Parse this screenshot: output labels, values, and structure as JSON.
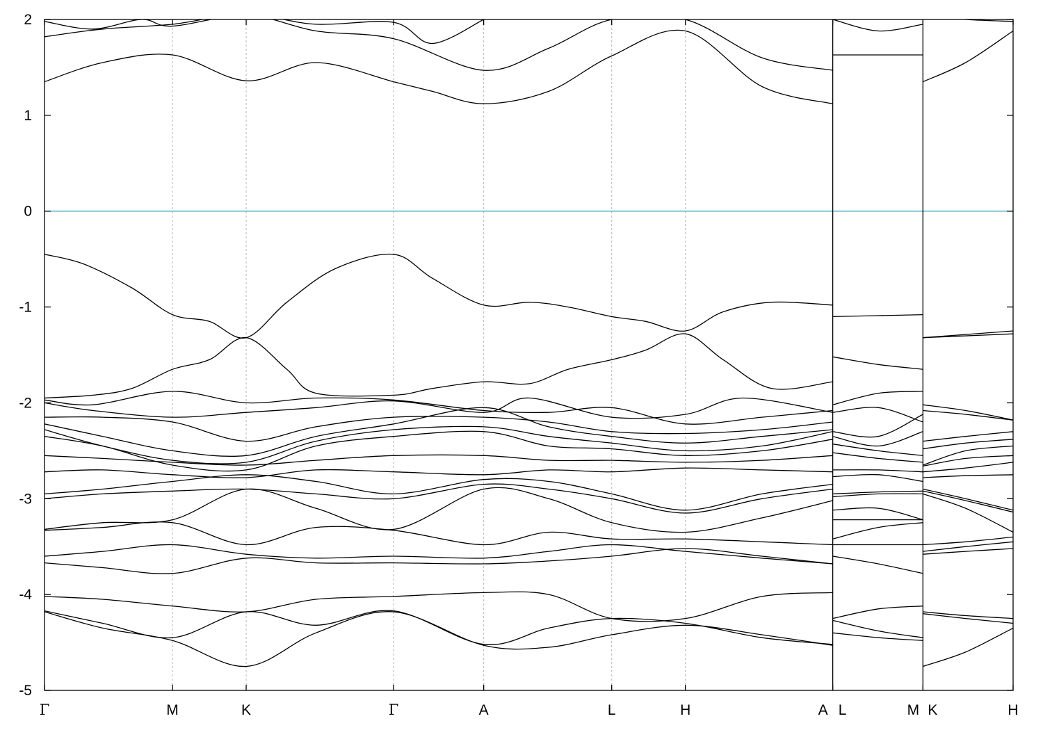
{
  "chart_data": {
    "type": "line",
    "title": "",
    "xlabel": "",
    "ylabel": "",
    "ylim": [
      -5,
      2
    ],
    "yticks": [
      -5,
      -4,
      -3,
      -2,
      -1,
      0,
      1,
      2
    ],
    "grid": "vertical dashed lines at high-symmetry points",
    "legend": "none",
    "reference_line": {
      "y": 0,
      "color": "#5fb4c8"
    },
    "kpoints": [
      {
        "label": "Γ",
        "x": 0.0
      },
      {
        "label": "M",
        "x": 1.32
      },
      {
        "label": "K",
        "x": 2.08
      },
      {
        "label": "Γ",
        "x": 3.6
      },
      {
        "label": "A",
        "x": 4.53
      },
      {
        "label": "L",
        "x": 5.85
      },
      {
        "label": "H",
        "x": 6.61
      },
      {
        "label": "A",
        "x": 8.13
      },
      {
        "label": "L",
        "x": 8.13
      },
      {
        "label": "M",
        "x": 9.06
      },
      {
        "label": "K",
        "x": 9.06
      },
      {
        "label": "H",
        "x": 9.99
      }
    ],
    "xlim": [
      0.0,
      9.99
    ],
    "segments": [
      {
        "path": "Γ-M-K-Γ-A-L-H-A",
        "x_start": 0.0,
        "x_end": 8.13
      },
      {
        "path": "L-M",
        "x_start": 8.13,
        "x_end": 9.06
      },
      {
        "path": "K-H",
        "x_start": 9.06,
        "x_end": 9.99
      }
    ],
    "series": [
      {
        "x": [
          0,
          0.4,
          0.9,
          1.32,
          1.7,
          2.08,
          2.5,
          3.0,
          3.6,
          4.0,
          4.53,
          5.0,
          5.4,
          5.85,
          6.2,
          6.61,
          7.0,
          7.5,
          8.13
        ],
        "y": [
          -0.45,
          -0.55,
          -0.8,
          -1.08,
          -1.15,
          -1.32,
          -0.95,
          -0.6,
          -0.45,
          -0.7,
          -0.98,
          -0.95,
          -1.0,
          -1.1,
          -1.15,
          -1.25,
          -1.05,
          -0.95,
          -0.98
        ]
      },
      {
        "x": [
          0,
          0.5,
          0.9,
          1.32,
          1.7,
          2.08,
          2.5,
          2.8,
          3.6,
          4.0,
          4.53,
          5.0,
          5.4,
          5.85,
          6.2,
          6.61,
          7.0,
          7.5,
          8.13
        ],
        "y": [
          -1.95,
          -1.92,
          -1.85,
          -1.65,
          -1.55,
          -1.32,
          -1.65,
          -1.9,
          -1.92,
          -1.85,
          -1.78,
          -1.8,
          -1.65,
          -1.55,
          -1.45,
          -1.28,
          -1.55,
          -1.85,
          -1.78
        ]
      },
      {
        "x": [
          0,
          0.5,
          1.32,
          2.08,
          2.8,
          3.6,
          4.53,
          5.2,
          5.85,
          6.61,
          7.4,
          8.13
        ],
        "y": [
          -1.97,
          -2.02,
          -1.88,
          -2.0,
          -1.95,
          -1.97,
          -2.08,
          -2.1,
          -2.05,
          -2.22,
          -2.15,
          -2.08
        ]
      },
      {
        "x": [
          0,
          0.5,
          1.32,
          2.08,
          2.8,
          3.6,
          4.53,
          5.0,
          5.85,
          6.61,
          7.2,
          8.13
        ],
        "y": [
          -2.0,
          -2.08,
          -2.15,
          -2.1,
          -2.05,
          -1.98,
          -2.1,
          -1.95,
          -2.15,
          -2.12,
          -1.95,
          -2.1
        ]
      },
      {
        "x": [
          0,
          0.6,
          1.32,
          2.08,
          2.8,
          3.6,
          4.53,
          5.2,
          5.85,
          6.61,
          7.4,
          8.13
        ],
        "y": [
          -2.15,
          -2.15,
          -2.2,
          -2.4,
          -2.25,
          -2.15,
          -2.15,
          -2.2,
          -2.3,
          -2.32,
          -2.28,
          -2.2
        ]
      },
      {
        "x": [
          0,
          0.6,
          1.32,
          2.08,
          2.8,
          3.6,
          4.53,
          5.2,
          5.85,
          6.61,
          7.4,
          8.13
        ],
        "y": [
          -2.22,
          -2.35,
          -2.5,
          -2.55,
          -2.35,
          -2.22,
          -2.05,
          -2.25,
          -2.35,
          -2.42,
          -2.35,
          -2.28
        ]
      },
      {
        "x": [
          0,
          0.6,
          1.32,
          2.08,
          2.8,
          3.6,
          4.53,
          5.2,
          5.85,
          6.61,
          7.4,
          8.13
        ],
        "y": [
          -2.28,
          -2.45,
          -2.6,
          -2.62,
          -2.4,
          -2.28,
          -2.25,
          -2.35,
          -2.42,
          -2.5,
          -2.45,
          -2.3
        ]
      },
      {
        "x": [
          0,
          0.6,
          1.32,
          2.08,
          2.8,
          3.6,
          4.53,
          5.2,
          5.85,
          6.61,
          7.4,
          8.13
        ],
        "y": [
          -2.35,
          -2.45,
          -2.65,
          -2.7,
          -2.45,
          -2.35,
          -2.3,
          -2.45,
          -2.48,
          -2.55,
          -2.5,
          -2.38
        ]
      },
      {
        "x": [
          0,
          0.6,
          1.32,
          2.08,
          2.8,
          3.6,
          4.53,
          5.2,
          5.85,
          6.61,
          7.4,
          8.13
        ],
        "y": [
          -2.55,
          -2.58,
          -2.62,
          -2.65,
          -2.6,
          -2.55,
          -2.55,
          -2.6,
          -2.6,
          -2.62,
          -2.6,
          -2.55
        ]
      },
      {
        "x": [
          0,
          0.6,
          1.32,
          2.08,
          2.8,
          3.6,
          4.53,
          5.2,
          5.85,
          6.61,
          7.4,
          8.13
        ],
        "y": [
          -2.72,
          -2.7,
          -2.75,
          -2.78,
          -2.7,
          -2.72,
          -2.75,
          -2.7,
          -2.72,
          -2.68,
          -2.7,
          -2.72
        ]
      },
      {
        "x": [
          0,
          0.6,
          1.32,
          2.08,
          2.8,
          3.6,
          4.53,
          5.2,
          5.85,
          6.61,
          7.4,
          8.13
        ],
        "y": [
          -2.95,
          -2.9,
          -2.82,
          -2.75,
          -2.82,
          -2.95,
          -2.8,
          -2.82,
          -2.95,
          -3.12,
          -2.95,
          -2.85
        ]
      },
      {
        "x": [
          0,
          0.6,
          1.32,
          2.08,
          2.8,
          3.6,
          4.53,
          5.2,
          5.85,
          6.61,
          7.4,
          8.13
        ],
        "y": [
          -3.0,
          -2.95,
          -2.92,
          -2.9,
          -2.95,
          -3.0,
          -2.85,
          -2.9,
          -3.0,
          -3.15,
          -3.0,
          -2.9
        ]
      },
      {
        "x": [
          0,
          0.6,
          1.32,
          2.08,
          2.8,
          3.6,
          4.53,
          5.2,
          5.85,
          6.61,
          7.4,
          8.13
        ],
        "y": [
          -3.32,
          -3.25,
          -3.22,
          -2.9,
          -3.1,
          -3.32,
          -2.9,
          -3.0,
          -3.25,
          -3.35,
          -3.2,
          -3.02
        ]
      },
      {
        "x": [
          0,
          0.6,
          1.32,
          2.08,
          2.8,
          3.6,
          4.53,
          5.2,
          5.85,
          6.61,
          7.4,
          8.13
        ],
        "y": [
          -3.33,
          -3.3,
          -3.25,
          -3.48,
          -3.3,
          -3.33,
          -3.48,
          -3.35,
          -3.42,
          -3.42,
          -3.45,
          -3.48
        ]
      },
      {
        "x": [
          0,
          0.6,
          1.32,
          2.08,
          2.8,
          3.6,
          4.53,
          5.2,
          5.85,
          6.61,
          7.4,
          8.13
        ],
        "y": [
          -3.6,
          -3.55,
          -3.48,
          -3.58,
          -3.62,
          -3.6,
          -3.62,
          -3.55,
          -3.48,
          -3.55,
          -3.62,
          -3.68
        ]
      },
      {
        "x": [
          0,
          0.6,
          1.32,
          2.08,
          2.8,
          3.6,
          4.53,
          5.2,
          5.85,
          6.61,
          7.4,
          8.13
        ],
        "y": [
          -3.67,
          -3.72,
          -3.78,
          -3.62,
          -3.67,
          -3.67,
          -3.68,
          -3.65,
          -3.6,
          -3.52,
          -3.6,
          -3.68
        ]
      },
      {
        "x": [
          0,
          0.6,
          1.32,
          2.08,
          2.8,
          3.6,
          4.53,
          5.2,
          5.85,
          6.61,
          7.4,
          8.13
        ],
        "y": [
          -4.02,
          -4.05,
          -4.12,
          -4.18,
          -4.05,
          -4.02,
          -3.98,
          -4.0,
          -4.25,
          -4.25,
          -4.02,
          -3.98
        ]
      },
      {
        "x": [
          0,
          0.6,
          1.32,
          2.08,
          2.8,
          3.6,
          4.53,
          5.2,
          5.85,
          6.61,
          7.4,
          8.13
        ],
        "y": [
          -4.17,
          -4.3,
          -4.45,
          -4.18,
          -4.32,
          -4.17,
          -4.52,
          -4.35,
          -4.25,
          -4.3,
          -4.45,
          -4.52
        ]
      },
      {
        "x": [
          0,
          0.6,
          1.32,
          2.08,
          2.8,
          3.6,
          4.53,
          5.2,
          5.85,
          6.61,
          7.4,
          8.13
        ],
        "y": [
          -4.18,
          -4.35,
          -4.48,
          -4.75,
          -4.4,
          -4.18,
          -4.53,
          -4.55,
          -4.42,
          -4.32,
          -4.42,
          -4.53
        ]
      },
      {
        "x": [
          0,
          0.6,
          1.32,
          2.08,
          2.8,
          3.6,
          4.0,
          4.53,
          5.2,
          5.85,
          6.61,
          7.4,
          8.13
        ],
        "y": [
          1.35,
          1.55,
          1.63,
          1.36,
          1.55,
          1.35,
          1.25,
          1.12,
          1.25,
          1.62,
          1.88,
          1.3,
          1.12
        ]
      },
      {
        "x": [
          0,
          0.6,
          1.32,
          2.08,
          2.8,
          3.6,
          4.53,
          5.2,
          5.85,
          6.61,
          7.4,
          8.13
        ],
        "y": [
          1.82,
          1.9,
          1.95,
          2.05,
          1.88,
          1.8,
          1.47,
          1.7,
          2.0,
          2.0,
          1.6,
          1.47
        ]
      },
      {
        "x": [
          0,
          0.5,
          1.0,
          1.32,
          2.08,
          2.8,
          3.6,
          4.0,
          4.53
        ],
        "y": [
          1.98,
          1.9,
          2.0,
          1.93,
          2.05,
          1.95,
          1.97,
          1.75,
          2.0
        ]
      },
      {
        "x": [
          8.13,
          9.06
        ],
        "y": [
          -1.1,
          -1.08
        ]
      },
      {
        "x": [
          8.13,
          8.6,
          9.06
        ],
        "y": [
          -1.52,
          -1.6,
          -1.65
        ]
      },
      {
        "x": [
          8.13,
          8.6,
          9.06
        ],
        "y": [
          -2.02,
          -1.9,
          -1.88
        ]
      },
      {
        "x": [
          8.13,
          8.6,
          9.06
        ],
        "y": [
          -2.1,
          -2.05,
          -2.2
        ]
      },
      {
        "x": [
          8.13,
          8.6,
          9.06
        ],
        "y": [
          -2.3,
          -2.35,
          -2.12
        ]
      },
      {
        "x": [
          8.13,
          8.6,
          9.06
        ],
        "y": [
          -2.35,
          -2.45,
          -2.3
        ]
      },
      {
        "x": [
          8.13,
          8.6,
          9.06
        ],
        "y": [
          -2.43,
          -2.5,
          -2.55
        ]
      },
      {
        "x": [
          8.13,
          8.6,
          9.06
        ],
        "y": [
          -2.52,
          -2.58,
          -2.62
        ]
      },
      {
        "x": [
          8.13,
          8.6,
          9.06
        ],
        "y": [
          -2.7,
          -2.7,
          -2.72
        ]
      },
      {
        "x": [
          8.13,
          8.6,
          9.06
        ],
        "y": [
          -2.77,
          -2.75,
          -2.82
        ]
      },
      {
        "x": [
          8.13,
          8.6,
          9.06
        ],
        "y": [
          -2.95,
          -2.93,
          -2.92
        ]
      },
      {
        "x": [
          8.13,
          8.6,
          9.06
        ],
        "y": [
          -2.98,
          -2.95,
          -2.95
        ]
      },
      {
        "x": [
          8.13,
          8.6,
          9.06
        ],
        "y": [
          -3.12,
          -3.1,
          -3.22
        ]
      },
      {
        "x": [
          8.13,
          8.6,
          9.06
        ],
        "y": [
          -3.22,
          -3.22,
          -3.22
        ]
      },
      {
        "x": [
          8.13,
          8.6,
          9.06
        ],
        "y": [
          -3.42,
          -3.3,
          -3.25
        ]
      },
      {
        "x": [
          8.13,
          8.6,
          9.06
        ],
        "y": [
          -3.48,
          -3.48,
          -3.48
        ]
      },
      {
        "x": [
          8.13,
          8.6,
          9.06
        ],
        "y": [
          -3.6,
          -3.68,
          -3.78
        ]
      },
      {
        "x": [
          8.13,
          8.6,
          9.06
        ],
        "y": [
          -4.25,
          -4.15,
          -4.12
        ]
      },
      {
        "x": [
          8.13,
          8.6,
          9.06
        ],
        "y": [
          -4.27,
          -4.38,
          -4.45
        ]
      },
      {
        "x": [
          8.13,
          8.6,
          9.06
        ],
        "y": [
          -4.4,
          -4.45,
          -4.48
        ]
      },
      {
        "x": [
          8.13,
          9.06
        ],
        "y": [
          1.63,
          1.63
        ]
      },
      {
        "x": [
          8.13,
          8.6,
          9.06
        ],
        "y": [
          2.0,
          1.88,
          1.95
        ]
      },
      {
        "x": [
          9.06,
          9.99
        ],
        "y": [
          -1.32,
          -1.25
        ]
      },
      {
        "x": [
          9.06,
          9.99
        ],
        "y": [
          -1.32,
          -1.28
        ]
      },
      {
        "x": [
          9.06,
          9.5,
          9.99
        ],
        "y": [
          -2.02,
          -2.08,
          -2.18
        ]
      },
      {
        "x": [
          9.06,
          9.5,
          9.99
        ],
        "y": [
          -2.08,
          -2.12,
          -2.18
        ]
      },
      {
        "x": [
          9.06,
          9.5,
          9.99
        ],
        "y": [
          -2.4,
          -2.35,
          -2.3
        ]
      },
      {
        "x": [
          9.06,
          9.5,
          9.99
        ],
        "y": [
          -2.48,
          -2.42,
          -2.38
        ]
      },
      {
        "x": [
          9.06,
          9.5,
          9.99
        ],
        "y": [
          -2.65,
          -2.5,
          -2.45
        ]
      },
      {
        "x": [
          9.06,
          9.5,
          9.99
        ],
        "y": [
          -2.66,
          -2.58,
          -2.55
        ]
      },
      {
        "x": [
          9.06,
          9.5,
          9.99
        ],
        "y": [
          -2.72,
          -2.68,
          -2.62
        ]
      },
      {
        "x": [
          9.06,
          9.5,
          9.99
        ],
        "y": [
          -2.78,
          -2.76,
          -2.75
        ]
      },
      {
        "x": [
          9.06,
          9.5,
          9.99
        ],
        "y": [
          -2.9,
          -3.0,
          -3.12
        ]
      },
      {
        "x": [
          9.06,
          9.5,
          9.99
        ],
        "y": [
          -2.92,
          -3.02,
          -3.14
        ]
      },
      {
        "x": [
          9.06,
          9.5,
          9.99
        ],
        "y": [
          -2.95,
          -3.1,
          -3.35
        ]
      },
      {
        "x": [
          9.06,
          9.5,
          9.99
        ],
        "y": [
          -3.48,
          -3.45,
          -3.4
        ]
      },
      {
        "x": [
          9.06,
          9.5,
          9.99
        ],
        "y": [
          -3.55,
          -3.5,
          -3.45
        ]
      },
      {
        "x": [
          9.06,
          9.5,
          9.99
        ],
        "y": [
          -3.58,
          -3.55,
          -3.52
        ]
      },
      {
        "x": [
          9.06,
          9.5,
          9.99
        ],
        "y": [
          -4.18,
          -4.22,
          -4.25
        ]
      },
      {
        "x": [
          9.06,
          9.5,
          9.99
        ],
        "y": [
          -4.2,
          -4.25,
          -4.3
        ]
      },
      {
        "x": [
          9.06,
          9.5,
          9.99
        ],
        "y": [
          -4.75,
          -4.6,
          -4.35
        ]
      },
      {
        "x": [
          9.06,
          9.5,
          9.99
        ],
        "y": [
          1.35,
          1.55,
          1.88
        ]
      },
      {
        "x": [
          9.06,
          9.5,
          9.99
        ],
        "y": [
          2.05,
          2.0,
          1.98
        ]
      }
    ]
  }
}
